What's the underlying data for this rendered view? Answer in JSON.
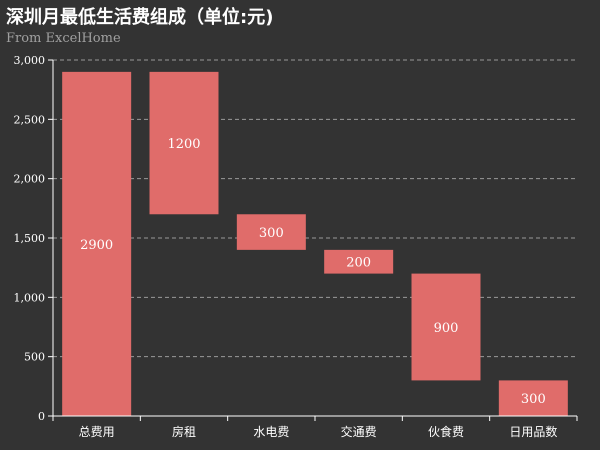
{
  "chart_data": {
    "type": "bar",
    "variant": "waterfall",
    "title": "深圳月最低生活费组成（单位:元)",
    "subtitle": "From ExcelHome",
    "categories": [
      "总费用",
      "房租",
      "水电费",
      "交通费",
      "伙食费",
      "日用品数"
    ],
    "values": [
      2900,
      1200,
      300,
      200,
      900,
      300
    ],
    "bar_bottoms": [
      0,
      1700,
      1400,
      1200,
      300,
      0
    ],
    "data_labels": [
      "2900",
      "1200",
      "300",
      "200",
      "900",
      "300"
    ],
    "ylim": [
      0,
      3000
    ],
    "yticks": [
      0,
      500,
      1000,
      1500,
      2000,
      2500,
      3000
    ],
    "ytick_labels": [
      "0",
      "500",
      "1,000",
      "1,500",
      "2,000",
      "2,500",
      "3,000"
    ],
    "xlabel": "",
    "ylabel": "",
    "grid": true,
    "grid_style": "dashed",
    "legend": "none",
    "colors": {
      "background": "#333333",
      "bar": "#e06c6a",
      "grid": "#9a9a9a",
      "axis": "#ffffff",
      "text": "#ffffff",
      "subtitle": "#a0a0a0"
    }
  }
}
